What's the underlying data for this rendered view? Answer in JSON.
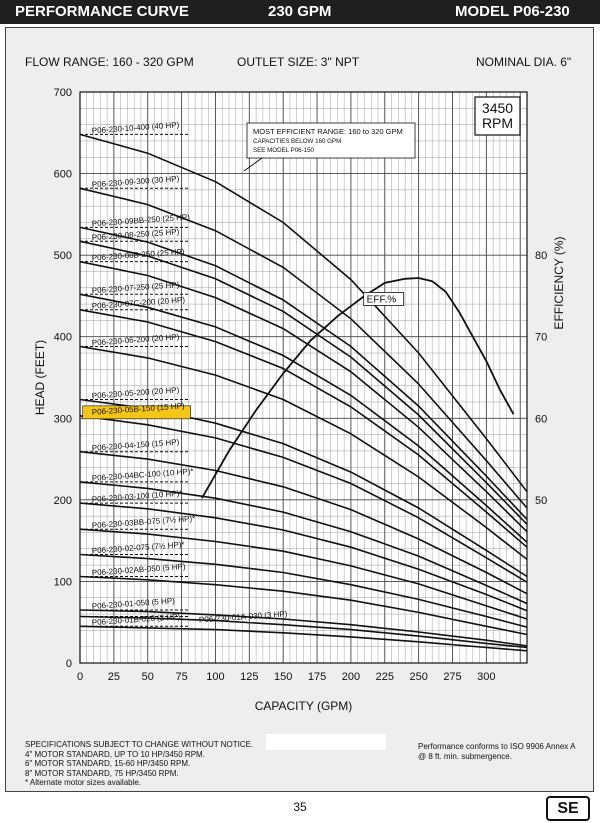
{
  "header": {
    "left_title": "PERFORMANCE CURVE",
    "mid_title": "230 GPM",
    "right_title": "MODEL  P06-230"
  },
  "specs": {
    "flow_range": "FLOW RANGE: 160 - 320 GPM",
    "outlet": "OUTLET SIZE: 3\" NPT",
    "diameter": "NOMINAL DIA. 6\""
  },
  "chart_data": {
    "type": "line",
    "xlabel": "CAPACITY (GPM)",
    "ylabel": "HEAD (FEET)",
    "y2label": "EFFICIENCY (%)",
    "xlim": [
      0,
      330
    ],
    "ylim": [
      0,
      700
    ],
    "y2lim": [
      30,
      100
    ],
    "xticks": [
      0,
      25,
      50,
      75,
      100,
      125,
      150,
      175,
      200,
      225,
      250,
      275,
      300
    ],
    "yticks": [
      0,
      100,
      200,
      300,
      400,
      500,
      600,
      700
    ],
    "y2ticks": [
      50,
      60,
      70,
      80
    ],
    "grid": true,
    "rpm_label": "3450\nRPM",
    "highlight_color": "#f5c518",
    "efficient_range_note": [
      "MOST EFFICIENT RANGE: 160 to 320 GPM",
      "CAPACITIES BELOW 160 GPM",
      "SEE  MODEL  P06-150"
    ],
    "efficiency_series": {
      "name": "EFF.%",
      "x": [
        90,
        110,
        130,
        150,
        170,
        190,
        210,
        225,
        240,
        250,
        260,
        270,
        280,
        290,
        300,
        310,
        320
      ],
      "y": [
        50.2,
        56,
        61,
        65.5,
        69.5,
        72.5,
        75,
        76.6,
        77.1,
        77.2,
        76.8,
        75.5,
        73,
        70,
        67,
        63.5,
        60.5
      ]
    },
    "series": [
      {
        "name": "P06-230-10-400 (40 HP)",
        "shutoff": 648,
        "x": [
          0,
          50,
          100,
          150,
          200,
          250,
          300,
          330
        ],
        "y": [
          648,
          625,
          590,
          540,
          470,
          380,
          275,
          210
        ]
      },
      {
        "name": "P06-230-09-300 (30 HP)",
        "shutoff": 582,
        "x": [
          0,
          50,
          100,
          150,
          200,
          250,
          300,
          330
        ],
        "y": [
          582,
          562,
          530,
          485,
          422,
          342,
          248,
          190
        ]
      },
      {
        "name": "P06-230-09BB-250 (25 HP)",
        "shutoff": 534,
        "x": [
          0,
          50,
          100,
          150,
          200,
          250,
          300,
          330
        ],
        "y": [
          534,
          516,
          487,
          445,
          388,
          315,
          229,
          176
        ]
      },
      {
        "name": "P06-230-08-250 (25 HP)",
        "shutoff": 517,
        "x": [
          0,
          50,
          100,
          150,
          200,
          250,
          300,
          330
        ],
        "y": [
          517,
          499,
          471,
          431,
          375,
          304,
          221,
          170
        ]
      },
      {
        "name": "P06-230-08B-250 (25 HP)",
        "shutoff": 492,
        "x": [
          0,
          50,
          100,
          150,
          200,
          250,
          300,
          330
        ],
        "y": [
          492,
          475,
          448,
          410,
          357,
          289,
          210,
          161
        ]
      },
      {
        "name": "P06-230-07-250 (25 HP)",
        "shutoff": 452,
        "x": [
          0,
          50,
          100,
          150,
          200,
          250,
          300,
          330
        ],
        "y": [
          452,
          436,
          412,
          377,
          328,
          266,
          193,
          148
        ]
      },
      {
        "name": "P06-230-07C-200 (20 HP)",
        "shutoff": 433,
        "x": [
          0,
          50,
          100,
          150,
          200,
          250,
          300,
          330
        ],
        "y": [
          433,
          418,
          394,
          361,
          314,
          255,
          185,
          142
        ]
      },
      {
        "name": "P06-230-06-200 (20 HP)",
        "shutoff": 388,
        "x": [
          0,
          50,
          100,
          150,
          200,
          250,
          300,
          330
        ],
        "y": [
          388,
          374,
          353,
          323,
          281,
          228,
          166,
          127
        ]
      },
      {
        "name": "P06-230-05-200 (20 HP)",
        "shutoff": 323,
        "x": [
          0,
          50,
          100,
          150,
          200,
          250,
          300,
          330
        ],
        "y": [
          323,
          312,
          294,
          269,
          234,
          190,
          138,
          106
        ]
      },
      {
        "name": "P06-230-05B-150 (15 HP)",
        "shutoff": 303,
        "highlight": true,
        "x": [
          0,
          50,
          100,
          150,
          200,
          250,
          300,
          330
        ],
        "y": [
          303,
          292,
          276,
          252,
          220,
          178,
          129,
          99
        ]
      },
      {
        "name": "P06-230-04-150 (15 HP)",
        "shutoff": 259,
        "x": [
          0,
          50,
          100,
          150,
          200,
          250,
          300,
          330
        ],
        "y": [
          259,
          250,
          236,
          216,
          188,
          152,
          111,
          85
        ]
      },
      {
        "name": "P06-230-04BC-100 (10 HP)*",
        "shutoff": 222,
        "x": [
          0,
          50,
          100,
          150,
          200,
          250,
          300,
          330
        ],
        "y": [
          222,
          214,
          202,
          185,
          161,
          131,
          95,
          73
        ]
      },
      {
        "name": "P06-230-03-100 (10 HP)*",
        "shutoff": 196,
        "x": [
          0,
          50,
          100,
          150,
          200,
          250,
          300,
          330
        ],
        "y": [
          196,
          189,
          178,
          163,
          142,
          115,
          84,
          64
        ]
      },
      {
        "name": "P06-230-03BB-075 (7½ HP)*",
        "shutoff": 164,
        "x": [
          0,
          50,
          100,
          150,
          200,
          250,
          300,
          330
        ],
        "y": [
          164,
          158,
          149,
          137,
          119,
          97,
          70,
          54
        ]
      },
      {
        "name": "P06-230-02-075 (7½ HP)*",
        "shutoff": 133,
        "x": [
          0,
          50,
          100,
          150,
          200,
          250,
          300,
          330
        ],
        "y": [
          133,
          128,
          121,
          111,
          96,
          78,
          57,
          44
        ]
      },
      {
        "name": "P06-230-02AB-050 (5 HP)",
        "shutoff": 106,
        "x": [
          0,
          50,
          100,
          150,
          200,
          250,
          300,
          330
        ],
        "y": [
          106,
          102,
          96,
          88,
          77,
          62,
          45,
          35
        ]
      },
      {
        "name": "P06-230-01-050 (5 HP)",
        "shutoff": 65,
        "x": [
          0,
          50,
          100,
          150,
          200,
          250,
          300,
          330
        ],
        "y": [
          65,
          63,
          59,
          54,
          47,
          38,
          28,
          21
        ]
      },
      {
        "name": "P06-230-01A-030 (3 HP)",
        "shutoff": 57,
        "x": [
          0,
          50,
          100,
          150,
          200,
          250,
          300,
          330
        ],
        "y": [
          57,
          55,
          52,
          47,
          41,
          33,
          24,
          19
        ]
      },
      {
        "name": "P06-230-01B-020 (2 HP)",
        "shutoff": 45,
        "x": [
          0,
          50,
          100,
          150,
          200,
          250,
          300,
          330
        ],
        "y": [
          45,
          43,
          41,
          37,
          32,
          26,
          19,
          15
        ]
      }
    ]
  },
  "footer": {
    "notes": [
      "SPECIFICATIONS SUBJECT TO CHANGE WITHOUT NOTICE.",
      "4\" MOTOR STANDARD, UP TO 10 HP/3450 RPM.",
      "6\" MOTOR STANDARD, 15-60 HP/3450 RPM.",
      "8\" MOTOR STANDARD, 75 HP/3450 RPM.",
      "* Alternate motor sizes available."
    ],
    "conformance": [
      "Performance conforms to ISO 9906 Annex A",
      "@ 8 ft. min. submergence."
    ],
    "page_number": "35",
    "logo_text": "SE"
  }
}
